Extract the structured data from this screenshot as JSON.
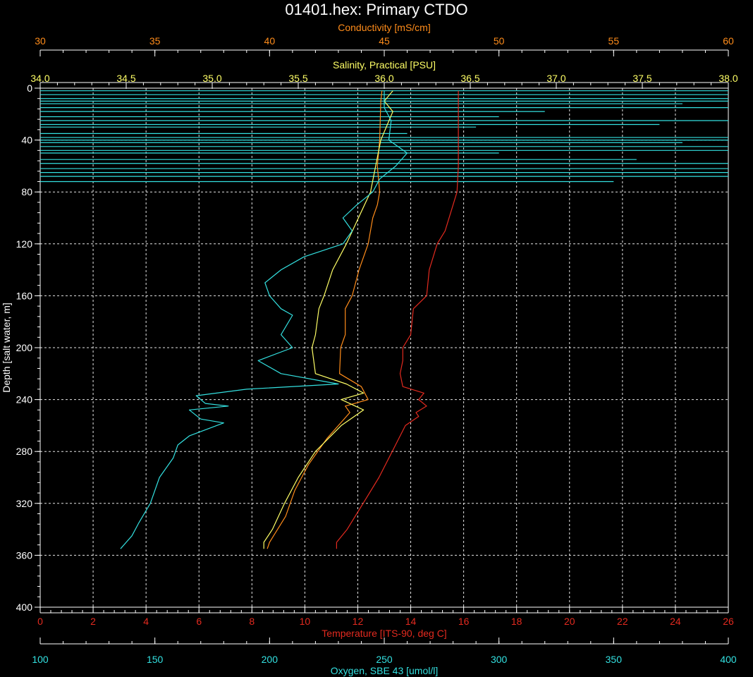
{
  "chart_data": {
    "type": "line",
    "title": "01401.hex: Primary CTDO",
    "grid": true,
    "y_axis": {
      "label": "Depth [salt water, m]",
      "range": [
        0,
        400
      ],
      "inverted": true,
      "ticks": [
        "0",
        "40",
        "80",
        "120",
        "160",
        "200",
        "240",
        "280",
        "320",
        "360",
        "400"
      ],
      "color": "#ffffff"
    },
    "x_axes": [
      {
        "id": "conductivity",
        "label": "Conductivity [mS/cm]",
        "position": "top-outer",
        "range": [
          30,
          60
        ],
        "ticks": [
          "30",
          "35",
          "40",
          "45",
          "50",
          "55",
          "60"
        ],
        "color": "#ff8c1a"
      },
      {
        "id": "salinity",
        "label": "Salinity, Practical [PSU]",
        "position": "top-inner",
        "range": [
          34.0,
          38.0
        ],
        "ticks": [
          "34.0",
          "34.5",
          "35.0",
          "35.5",
          "36.0",
          "36.5",
          "37.0",
          "37.5",
          "38.0"
        ],
        "color": "#ffff66"
      },
      {
        "id": "temperature",
        "label": "Temperature [ITS-90, deg C]",
        "position": "bottom-inner",
        "range": [
          0,
          26
        ],
        "ticks": [
          "0",
          "2",
          "4",
          "6",
          "8",
          "10",
          "12",
          "14",
          "16",
          "18",
          "20",
          "22",
          "24",
          "26"
        ],
        "color": "#e32a1f"
      },
      {
        "id": "oxygen",
        "label": "Oxygen, SBE 43 [umol/l]",
        "position": "bottom-outer",
        "range": [
          100,
          400
        ],
        "ticks": [
          "100",
          "150",
          "200",
          "250",
          "300",
          "350",
          "400"
        ],
        "color": "#33e0e0"
      }
    ],
    "series": [
      {
        "axis": "temperature",
        "color": "#e32a1f",
        "points": [
          [
            15.8,
            2
          ],
          [
            15.8,
            10
          ],
          [
            15.8,
            40
          ],
          [
            15.8,
            60
          ],
          [
            15.75,
            80
          ],
          [
            15.6,
            90
          ],
          [
            15.3,
            110
          ],
          [
            15.0,
            120
          ],
          [
            14.7,
            140
          ],
          [
            14.6,
            160
          ],
          [
            14.1,
            170
          ],
          [
            14.0,
            190
          ],
          [
            13.7,
            200
          ],
          [
            13.7,
            210
          ],
          [
            13.6,
            220
          ],
          [
            13.7,
            230
          ],
          [
            14.5,
            235
          ],
          [
            14.3,
            240
          ],
          [
            14.6,
            245
          ],
          [
            14.2,
            250
          ],
          [
            14.3,
            253
          ],
          [
            13.8,
            260
          ],
          [
            13.3,
            280
          ],
          [
            12.8,
            300
          ],
          [
            12.2,
            320
          ],
          [
            11.6,
            340
          ],
          [
            11.2,
            350
          ],
          [
            11.2,
            355
          ]
        ]
      },
      {
        "axis": "conductivity",
        "color": "#ff8c1a",
        "points": [
          [
            44.9,
            2
          ],
          [
            44.85,
            10
          ],
          [
            44.8,
            40
          ],
          [
            44.7,
            60
          ],
          [
            44.8,
            80
          ],
          [
            44.7,
            90
          ],
          [
            44.5,
            100
          ],
          [
            44.3,
            120
          ],
          [
            43.9,
            140
          ],
          [
            43.6,
            160
          ],
          [
            43.3,
            170
          ],
          [
            43.3,
            190
          ],
          [
            43.1,
            200
          ],
          [
            43.05,
            220
          ],
          [
            44.0,
            230
          ],
          [
            44.3,
            240
          ],
          [
            43.3,
            245
          ],
          [
            43.5,
            250
          ],
          [
            42.5,
            270
          ],
          [
            41.7,
            290
          ],
          [
            41.1,
            310
          ],
          [
            40.7,
            330
          ],
          [
            40.0,
            350
          ],
          [
            39.9,
            355
          ]
        ]
      },
      {
        "axis": "salinity",
        "color": "#ffff66",
        "points": [
          [
            36.05,
            2
          ],
          [
            36.0,
            10
          ],
          [
            36.05,
            18
          ],
          [
            35.98,
            40
          ],
          [
            35.95,
            60
          ],
          [
            35.92,
            80
          ],
          [
            35.85,
            100
          ],
          [
            35.78,
            120
          ],
          [
            35.7,
            140
          ],
          [
            35.65,
            160
          ],
          [
            35.62,
            170
          ],
          [
            35.6,
            190
          ],
          [
            35.58,
            200
          ],
          [
            35.6,
            220
          ],
          [
            35.78,
            228
          ],
          [
            35.88,
            235
          ],
          [
            35.75,
            240
          ],
          [
            35.88,
            248
          ],
          [
            35.75,
            260
          ],
          [
            35.6,
            280
          ],
          [
            35.5,
            300
          ],
          [
            35.42,
            320
          ],
          [
            35.35,
            340
          ],
          [
            35.3,
            350
          ],
          [
            35.3,
            355
          ]
        ]
      },
      {
        "axis": "oxygen",
        "color": "#33e0e0",
        "points": [
          [
            250,
            2
          ],
          [
            250,
            15
          ],
          [
            253,
            25
          ],
          [
            252,
            40
          ],
          [
            260,
            50
          ],
          [
            255,
            60
          ],
          [
            248,
            70
          ],
          [
            245,
            80
          ],
          [
            238,
            90
          ],
          [
            232,
            100
          ],
          [
            236,
            110
          ],
          [
            232,
            120
          ],
          [
            215,
            130
          ],
          [
            205,
            140
          ],
          [
            198,
            150
          ],
          [
            200,
            160
          ],
          [
            205,
            170
          ],
          [
            210,
            175
          ],
          [
            205,
            190
          ],
          [
            210,
            200
          ],
          [
            195,
            210
          ],
          [
            205,
            220
          ],
          [
            230,
            228
          ],
          [
            190,
            232
          ],
          [
            168,
            237
          ],
          [
            172,
            243
          ],
          [
            182,
            245
          ],
          [
            165,
            248
          ],
          [
            170,
            255
          ],
          [
            180,
            258
          ],
          [
            165,
            268
          ],
          [
            160,
            275
          ],
          [
            158,
            285
          ],
          [
            152,
            300
          ],
          [
            148,
            320
          ],
          [
            143,
            335
          ],
          [
            140,
            345
          ],
          [
            135,
            355
          ]
        ]
      }
    ],
    "surface_noise": {
      "axis": "oxygen",
      "color": "#33e0e0",
      "depths": [
        2,
        5,
        8,
        10,
        12,
        15,
        18,
        22,
        25,
        28,
        30,
        35,
        38,
        40,
        42,
        45,
        48,
        50,
        55,
        58,
        62,
        65,
        68,
        72
      ],
      "values": [
        400,
        400,
        400,
        400,
        380,
        400,
        320,
        300,
        400,
        370,
        290,
        260,
        400,
        400,
        380,
        400,
        400,
        300,
        360,
        400,
        400,
        400,
        400,
        350
      ]
    }
  }
}
